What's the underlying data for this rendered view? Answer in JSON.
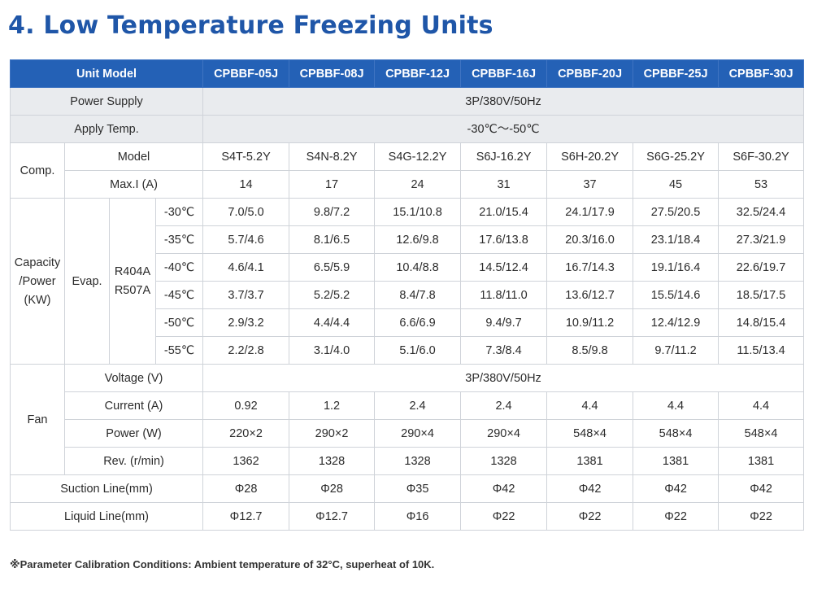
{
  "title": "4. Low Temperature Freezing Units",
  "header": {
    "unit_model_label": "Unit Model",
    "models": [
      "CPBBF-05J",
      "CPBBF-08J",
      "CPBBF-12J",
      "CPBBF-16J",
      "CPBBF-20J",
      "CPBBF-25J",
      "CPBBF-30J"
    ]
  },
  "power_supply": {
    "label": "Power Supply",
    "value": "3P/380V/50Hz"
  },
  "apply_temp": {
    "label": "Apply Temp.",
    "value": "-30℃～-50℃"
  },
  "comp": {
    "label": "Comp.",
    "model": {
      "label": "Model",
      "values": [
        "S4T-5.2Y",
        "S4N-8.2Y",
        "S4G-12.2Y",
        "S6J-16.2Y",
        "S6H-20.2Y",
        "S6G-25.2Y",
        "S6F-30.2Y"
      ]
    },
    "max_i": {
      "label": "Max.I (A)",
      "values": [
        "14",
        "17",
        "24",
        "31",
        "37",
        "45",
        "53"
      ]
    }
  },
  "capacity": {
    "label_line1": "Capacity",
    "label_line2": "/Power",
    "label_line3": "(KW)",
    "evap_label": "Evap.",
    "refrigerant_line1": "R404A",
    "refrigerant_line2": "R507A",
    "rows": [
      {
        "temp": "-30℃",
        "values": [
          "7.0/5.0",
          "9.8/7.2",
          "15.1/10.8",
          "21.0/15.4",
          "24.1/17.9",
          "27.5/20.5",
          "32.5/24.4"
        ]
      },
      {
        "temp": "-35℃",
        "values": [
          "5.7/4.6",
          "8.1/6.5",
          "12.6/9.8",
          "17.6/13.8",
          "20.3/16.0",
          "23.1/18.4",
          "27.3/21.9"
        ]
      },
      {
        "temp": "-40℃",
        "values": [
          "4.6/4.1",
          "6.5/5.9",
          "10.4/8.8",
          "14.5/12.4",
          "16.7/14.3",
          "19.1/16.4",
          "22.6/19.7"
        ]
      },
      {
        "temp": "-45℃",
        "values": [
          "3.7/3.7",
          "5.2/5.2",
          "8.4/7.8",
          "11.8/11.0",
          "13.6/12.7",
          "15.5/14.6",
          "18.5/17.5"
        ]
      },
      {
        "temp": "-50℃",
        "values": [
          "2.9/3.2",
          "4.4/4.4",
          "6.6/6.9",
          "9.4/9.7",
          "10.9/11.2",
          "12.4/12.9",
          "14.8/15.4"
        ]
      },
      {
        "temp": "-55℃",
        "values": [
          "2.2/2.8",
          "3.1/4.0",
          "5.1/6.0",
          "7.3/8.4",
          "8.5/9.8",
          "9.7/11.2",
          "11.5/13.4"
        ]
      }
    ]
  },
  "fan": {
    "label": "Fan",
    "voltage": {
      "label": "Voltage (V)",
      "value": "3P/380V/50Hz"
    },
    "current": {
      "label": "Current (A)",
      "values": [
        "0.92",
        "1.2",
        "2.4",
        "2.4",
        "4.4",
        "4.4",
        "4.4"
      ]
    },
    "power": {
      "label": "Power (W)",
      "values": [
        "220×2",
        "290×2",
        "290×4",
        "290×4",
        "548×4",
        "548×4",
        "548×4"
      ]
    },
    "rev": {
      "label": "Rev. (r/min)",
      "values": [
        "1362",
        "1328",
        "1328",
        "1328",
        "1381",
        "1381",
        "1381"
      ]
    }
  },
  "suction_line": {
    "label": "Suction Line(mm)",
    "values": [
      "Φ28",
      "Φ28",
      "Φ35",
      "Φ42",
      "Φ42",
      "Φ42",
      "Φ42"
    ]
  },
  "liquid_line": {
    "label": "Liquid Line(mm)",
    "values": [
      "Φ12.7",
      "Φ12.7",
      "Φ16",
      "Φ22",
      "Φ22",
      "Φ22",
      "Φ22"
    ]
  },
  "note": "※Parameter Calibration Conditions: Ambient temperature of 32°C, superheat of 10K."
}
